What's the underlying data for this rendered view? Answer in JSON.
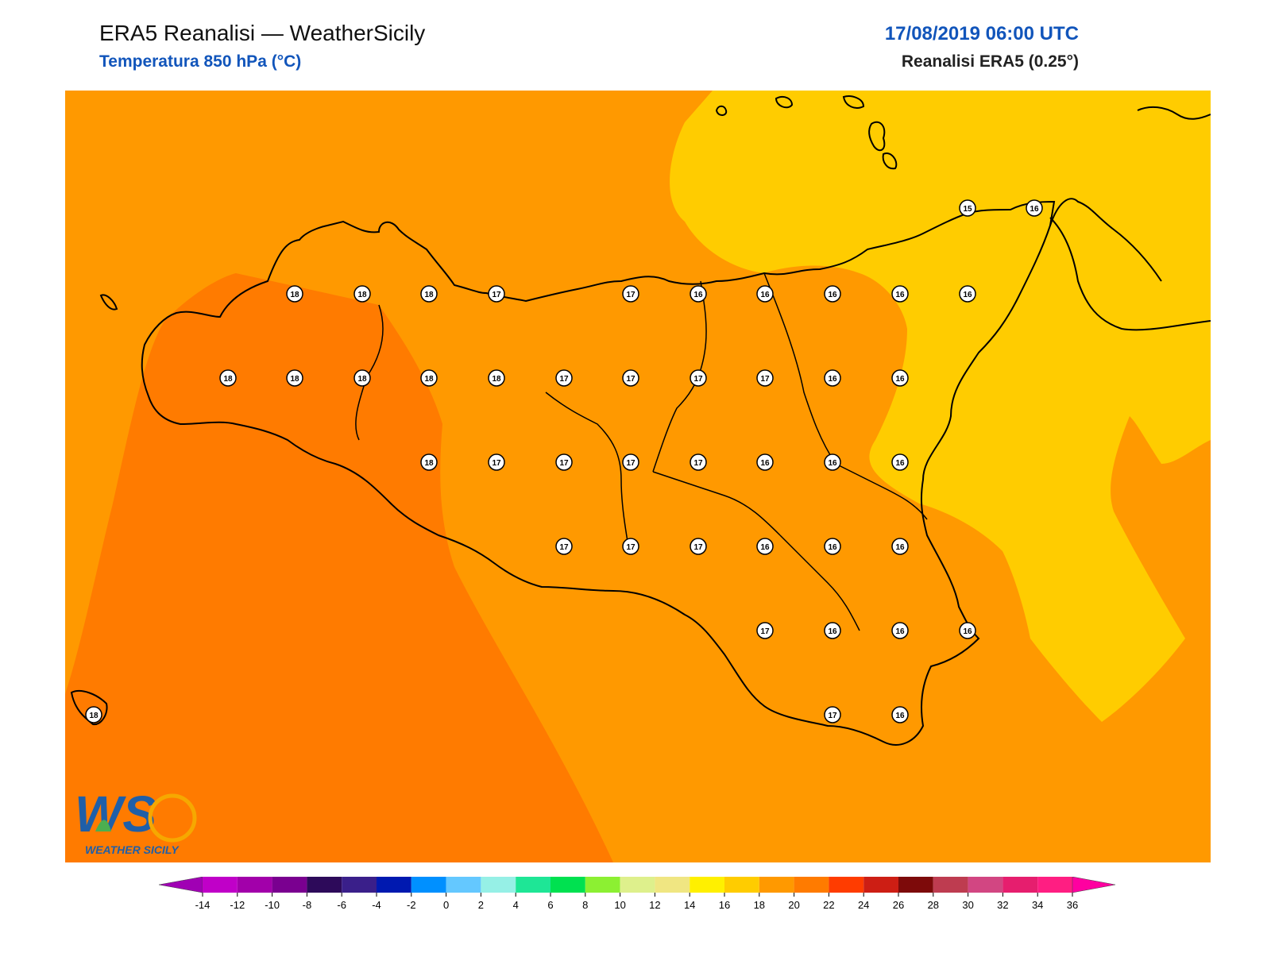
{
  "header": {
    "title": "ERA5 Reanalisi — WeatherSicily",
    "subtitle": "Temperatura 850 hPa (°C)",
    "datetime": "17/08/2019 06:00 UTC",
    "source": "Reanalisi ERA5 (0.25°)"
  },
  "logo": {
    "text": "WEATHER SICILY",
    "mark": "WS"
  },
  "colors": {
    "field_16_18": "#ff9900",
    "field_18_20": "#ff7b00",
    "field_14_16": "#ffcc00",
    "coastline": "#000000",
    "title_blue": "#1155bb"
  },
  "colorbar": {
    "ticks": [
      "-14",
      "-12",
      "-10",
      "-8",
      "-6",
      "-4",
      "-2",
      "0",
      "2",
      "4",
      "6",
      "8",
      "10",
      "12",
      "14",
      "16",
      "18",
      "20",
      "22",
      "24",
      "26",
      "28",
      "30",
      "32",
      "34",
      "36"
    ],
    "colors": [
      "#c000c8",
      "#a200aa",
      "#7a0090",
      "#2d0a5a",
      "#3a1f8a",
      "#0019b0",
      "#0090ff",
      "#64c8ff",
      "#96f0e6",
      "#1ee696",
      "#00e150",
      "#8cf032",
      "#def08c",
      "#f0e682",
      "#fff000",
      "#ffcc00",
      "#ff9900",
      "#ff7b00",
      "#ff3c00",
      "#cd1e14",
      "#7d0a0a",
      "#be3c50",
      "#d24682",
      "#e61e6e",
      "#ff1e82"
    ],
    "under_color": "#a000b4",
    "over_color": "#ff00a0"
  },
  "station_values": [
    "18",
    "18",
    "18",
    "17",
    "17",
    "16",
    "16",
    "16",
    "16",
    "16",
    "18",
    "18",
    "18",
    "18",
    "18",
    "17",
    "17",
    "17",
    "17",
    "16",
    "16",
    "18",
    "17",
    "17",
    "17",
    "17",
    "16",
    "16",
    "16",
    "17",
    "17",
    "17",
    "16",
    "16",
    "16",
    "17",
    "16",
    "16",
    "16",
    "17",
    "16",
    "18",
    "15",
    "16"
  ]
}
